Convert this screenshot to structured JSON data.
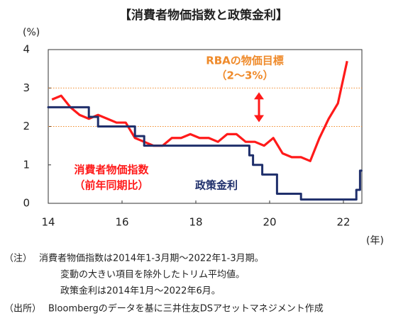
{
  "chart_data": {
    "type": "line",
    "title": "【消費者物価指数と政策金利】",
    "y_unit": "(%)",
    "x_unit": "(年)",
    "xlim": [
      14,
      22.5
    ],
    "xticks": [
      14,
      16,
      18,
      20,
      22
    ],
    "ylim": [
      0,
      4
    ],
    "yticks": [
      0,
      1,
      2,
      3,
      4
    ],
    "reference_lines": [
      2,
      3
    ],
    "reference_color": "#ef8a2a",
    "annotations": {
      "target": [
        "RBAの物価目標",
        "（2～3%）"
      ],
      "cpi": [
        "消費者物価指数",
        "（前年同期比）"
      ],
      "rate": [
        "政策金利"
      ]
    },
    "series": [
      {
        "name": "消費者物価指数",
        "color": "#ff1a1a",
        "style": "line",
        "x": [
          14.1,
          14.35,
          14.6,
          14.85,
          15.1,
          15.35,
          15.6,
          15.85,
          16.1,
          16.35,
          16.6,
          16.85,
          17.1,
          17.35,
          17.6,
          17.85,
          18.1,
          18.35,
          18.6,
          18.85,
          19.1,
          19.35,
          19.6,
          19.85,
          20.1,
          20.35,
          20.6,
          20.85,
          21.1,
          21.35,
          21.6,
          21.85,
          22.1
        ],
        "values": [
          2.7,
          2.8,
          2.5,
          2.3,
          2.2,
          2.3,
          2.2,
          2.1,
          2.1,
          1.7,
          1.6,
          1.5,
          1.5,
          1.7,
          1.7,
          1.8,
          1.7,
          1.7,
          1.6,
          1.8,
          1.8,
          1.6,
          1.6,
          1.5,
          1.7,
          1.3,
          1.2,
          1.2,
          1.1,
          1.7,
          2.2,
          2.6,
          3.7
        ]
      },
      {
        "name": "政策金利",
        "color": "#1f2f6b",
        "style": "step",
        "x": [
          14.0,
          15.1,
          15.35,
          16.35,
          16.6,
          19.45,
          19.55,
          19.8,
          20.2,
          20.85,
          22.35,
          22.45
        ],
        "values": [
          2.5,
          2.25,
          2.0,
          1.75,
          1.5,
          1.25,
          1.0,
          0.75,
          0.25,
          0.1,
          0.35,
          0.85
        ]
      }
    ],
    "notes": [
      {
        "label": "（注）",
        "lines": [
          "消費者物価指数は2014年1-3月期～2022年1-3月期。",
          "変動の大きい項目を除外したトリム平均値。",
          "政策金利は2014年1月～2022年6月。"
        ]
      },
      {
        "label": "（出所）",
        "lines": [
          "Bloombergのデータを基に三井住友DSアセットマネジメント作成"
        ]
      }
    ]
  }
}
